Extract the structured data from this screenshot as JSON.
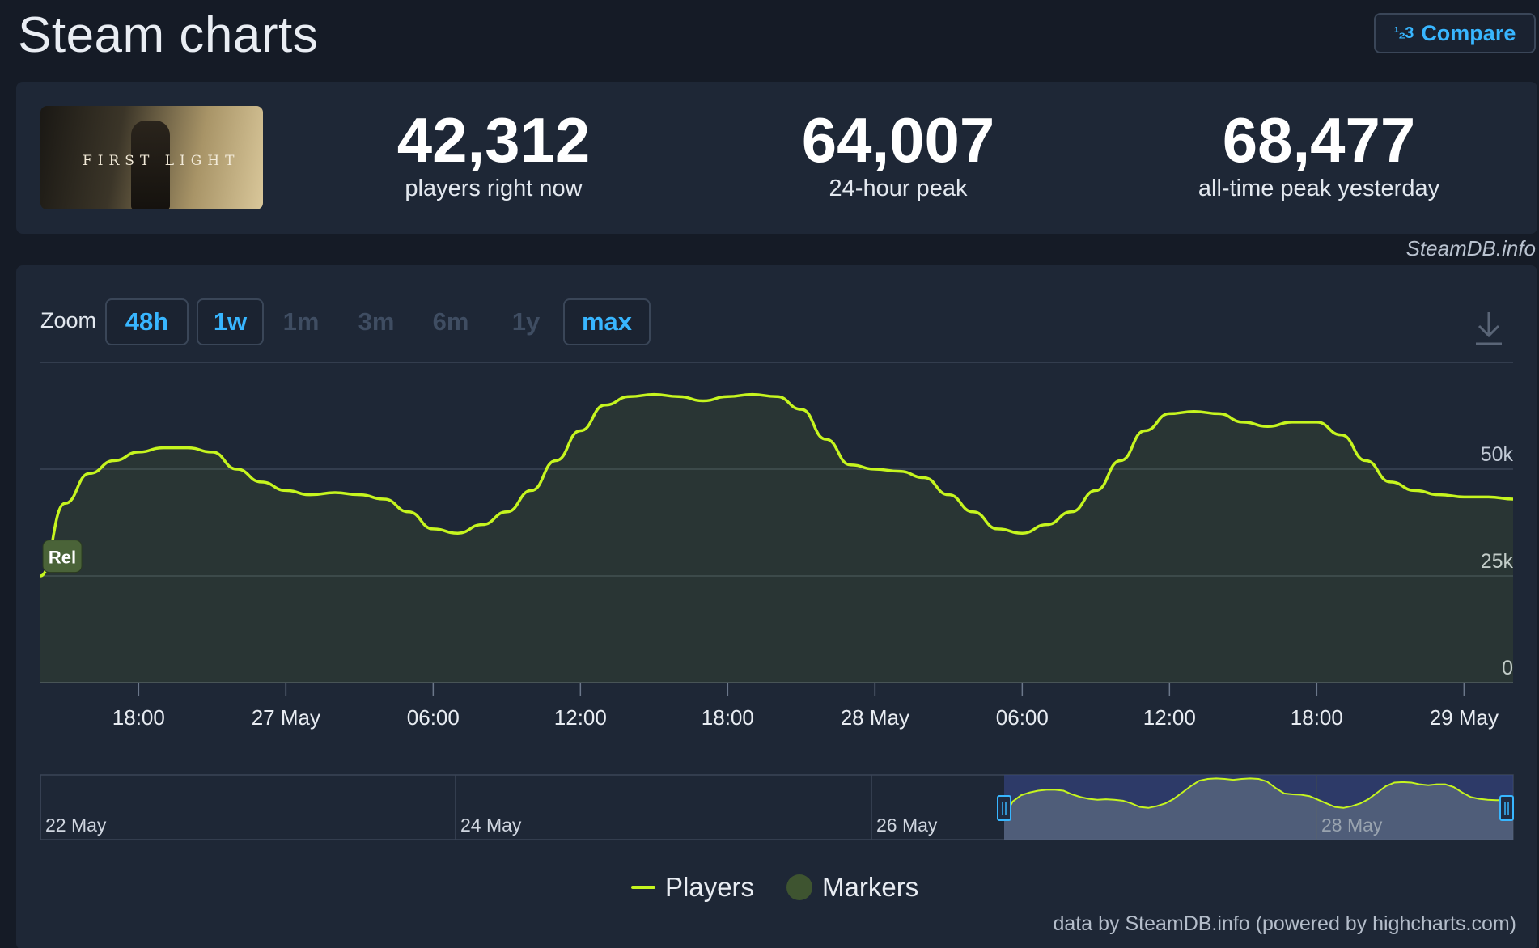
{
  "header": {
    "title": "Steam charts",
    "compare_icon": "1/2/3-icon",
    "compare_label": "Compare"
  },
  "stats": {
    "game_logo_text": "FIRST LIGHT",
    "players_now": "42,312",
    "players_now_label": "players right now",
    "peak_24h": "64,007",
    "peak_24h_label": "24-hour peak",
    "all_time_peak": "68,477",
    "all_time_peak_label": "all-time peak yesterday"
  },
  "credit": "SteamDB.info",
  "zoom": {
    "label": "Zoom",
    "options": [
      {
        "label": "48h",
        "active": true
      },
      {
        "label": "1w",
        "active": true
      },
      {
        "label": "1m",
        "active": false
      },
      {
        "label": "3m",
        "active": false
      },
      {
        "label": "6m",
        "active": false
      },
      {
        "label": "1y",
        "active": false
      },
      {
        "label": "max",
        "active": true
      }
    ]
  },
  "legend": {
    "players": "Players",
    "markers": "Markers"
  },
  "footer": "data by SteamDB.info (powered by highcharts.com)",
  "colors": {
    "accent": "#38b6ff",
    "series": "#c6f51f",
    "marker": "#3e5430"
  },
  "chart_data": {
    "type": "line",
    "x_tick_labels": [
      "18:00",
      "27 May",
      "06:00",
      "12:00",
      "18:00",
      "28 May",
      "06:00",
      "12:00",
      "18:00",
      "29 May"
    ],
    "x_ticks_hours": [
      18,
      24,
      30,
      36,
      42,
      48,
      54,
      60,
      66,
      72
    ],
    "y_ticks": [
      0,
      25000,
      50000
    ],
    "y_tick_labels": [
      "0",
      "25k",
      "50k"
    ],
    "ylim": [
      0,
      75000
    ],
    "xlim_hours": [
      14,
      74
    ],
    "marker": {
      "label": "Rel",
      "x_hours": 14.1,
      "y": 30000
    },
    "series": [
      {
        "name": "Players",
        "x_hours": [
          14,
          15,
          16,
          17,
          18,
          19,
          20,
          21,
          22,
          23,
          24,
          25,
          26,
          27,
          28,
          29,
          30,
          31,
          32,
          33,
          34,
          35,
          36,
          37,
          38,
          39,
          40,
          41,
          42,
          43,
          44,
          45,
          46,
          47,
          48,
          49,
          50,
          51,
          52,
          53,
          54,
          55,
          56,
          57,
          58,
          59,
          60,
          61,
          62,
          63,
          64,
          65,
          66,
          67,
          68,
          69,
          70,
          71,
          72,
          73,
          74
        ],
        "values": [
          25000,
          42000,
          49000,
          52000,
          54000,
          55000,
          55000,
          54000,
          50000,
          47000,
          45000,
          44000,
          44500,
          44000,
          43000,
          40000,
          36000,
          35000,
          37000,
          40000,
          45000,
          52000,
          59000,
          65000,
          67000,
          67500,
          67000,
          66000,
          67000,
          67500,
          67000,
          64000,
          57000,
          51000,
          50000,
          49500,
          48000,
          44000,
          40000,
          36000,
          35000,
          37000,
          40000,
          45000,
          52000,
          59000,
          63000,
          63500,
          63000,
          61000,
          60000,
          61000,
          61000,
          58000,
          52000,
          47000,
          45000,
          44000,
          43500,
          43500,
          43000
        ]
      }
    ],
    "navigator": {
      "x_labels": [
        "22 May",
        "24 May",
        "26 May",
        "28 May"
      ],
      "selection_start_label": "26 May",
      "selection_end_label": "29 May"
    }
  }
}
